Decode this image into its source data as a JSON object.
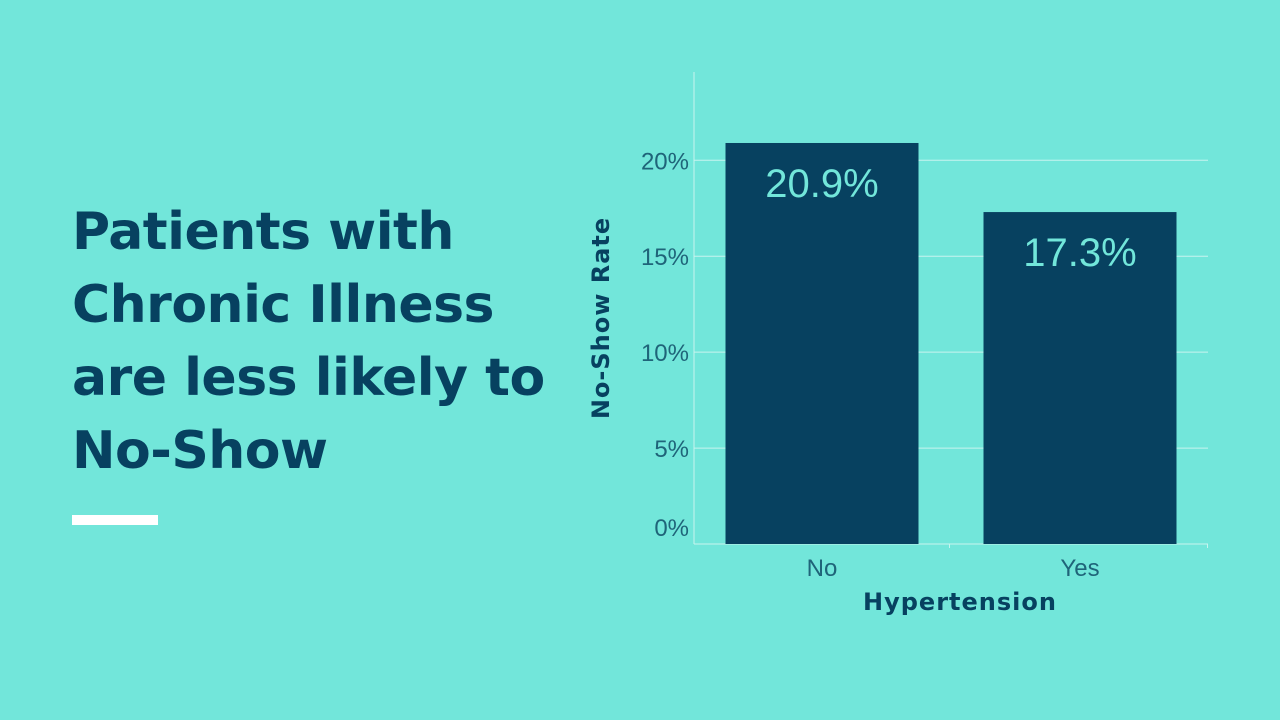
{
  "slide": {
    "headline": "Patients with Chronic Illness are less likely to No-Show",
    "background_color": "#72e6da",
    "accent_color": "#074160",
    "rule_color": "#ffffff"
  },
  "chart_data": {
    "type": "bar",
    "title": "",
    "xlabel": "Hypertension",
    "ylabel": "No-Show Rate",
    "categories": [
      "No",
      "Yes"
    ],
    "values": [
      20.9,
      17.3
    ],
    "data_labels": [
      "20.9%",
      "17.3%"
    ],
    "yticks": [
      0,
      5,
      10,
      15,
      20
    ],
    "ytick_labels": [
      "0%",
      "5%",
      "10%",
      "15%",
      "20%"
    ],
    "ylim": [
      0,
      24.6
    ],
    "grid": true,
    "legend": "none",
    "bar_color": "#074160",
    "label_color": "#72e6da",
    "gridline_color": "#c8f4ef"
  }
}
